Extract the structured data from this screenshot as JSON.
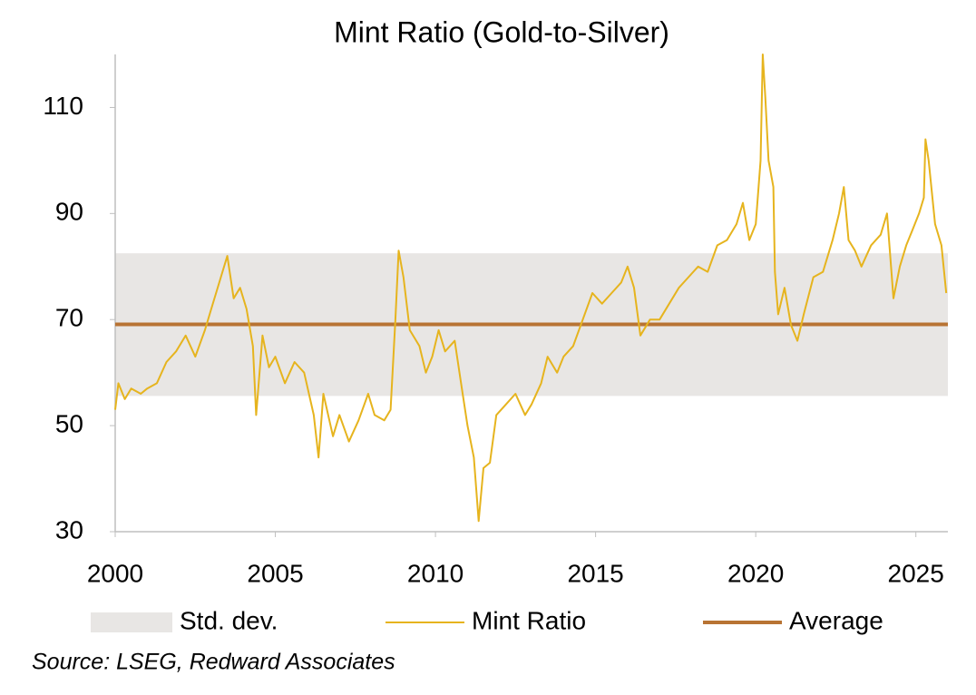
{
  "chart_data": {
    "type": "line",
    "title": "Mint Ratio (Gold-to-Silver)",
    "source": "Source: LSEG, Redward Associates",
    "xlim": [
      2000,
      2026
    ],
    "xticks": [
      2000,
      2005,
      2010,
      2015,
      2020,
      2025
    ],
    "ylim": [
      30,
      120
    ],
    "yticks": [
      30,
      50,
      70,
      90,
      110
    ],
    "band": {
      "name": "Std. dev.",
      "color": "#e8e6e4",
      "lower": 55.6,
      "upper": 82.5
    },
    "average": {
      "name": "Average",
      "color": "#b87333",
      "value": 69.1
    },
    "series": [
      {
        "name": "Mint Ratio",
        "color": "#e6b41e",
        "x": [
          2000.0,
          2000.1,
          2000.3,
          2000.5,
          2000.8,
          2001.0,
          2001.3,
          2001.6,
          2001.9,
          2002.2,
          2002.5,
          2002.8,
          2003.0,
          2003.3,
          2003.5,
          2003.7,
          2003.9,
          2004.1,
          2004.3,
          2004.4,
          2004.6,
          2004.8,
          2005.0,
          2005.3,
          2005.6,
          2005.9,
          2006.2,
          2006.35,
          2006.5,
          2006.8,
          2007.0,
          2007.3,
          2007.6,
          2007.9,
          2008.1,
          2008.4,
          2008.6,
          2008.75,
          2008.85,
          2009.0,
          2009.2,
          2009.5,
          2009.7,
          2009.9,
          2010.1,
          2010.3,
          2010.6,
          2010.8,
          2011.0,
          2011.2,
          2011.35,
          2011.5,
          2011.7,
          2011.9,
          2012.2,
          2012.5,
          2012.8,
          2013.0,
          2013.3,
          2013.5,
          2013.8,
          2014.0,
          2014.3,
          2014.6,
          2014.9,
          2015.2,
          2015.5,
          2015.8,
          2016.0,
          2016.2,
          2016.4,
          2016.7,
          2017.0,
          2017.3,
          2017.6,
          2017.9,
          2018.2,
          2018.5,
          2018.8,
          2019.1,
          2019.4,
          2019.6,
          2019.8,
          2020.0,
          2020.15,
          2020.22,
          2020.3,
          2020.4,
          2020.55,
          2020.6,
          2020.7,
          2020.9,
          2021.1,
          2021.3,
          2021.5,
          2021.8,
          2022.1,
          2022.4,
          2022.6,
          2022.75,
          2022.9,
          2023.1,
          2023.3,
          2023.6,
          2023.9,
          2024.1,
          2024.3,
          2024.5,
          2024.7,
          2024.9,
          2025.1,
          2025.25,
          2025.3,
          2025.4,
          2025.6,
          2025.8,
          2025.95
        ],
        "values": [
          53,
          58,
          55,
          57,
          56,
          57,
          58,
          62,
          64,
          67,
          63,
          68,
          72,
          78,
          82,
          74,
          76,
          72,
          65,
          52,
          67,
          61,
          63,
          58,
          62,
          60,
          52,
          44,
          56,
          48,
          52,
          47,
          51,
          56,
          52,
          51,
          53,
          70,
          83,
          78,
          68,
          65,
          60,
          63,
          68,
          64,
          66,
          58,
          50,
          44,
          32,
          42,
          43,
          52,
          54,
          56,
          52,
          54,
          58,
          63,
          60,
          63,
          65,
          70,
          75,
          73,
          75,
          77,
          80,
          76,
          67,
          70,
          70,
          73,
          76,
          78,
          80,
          79,
          84,
          85,
          88,
          92,
          85,
          88,
          100,
          120,
          112,
          100,
          95,
          79,
          71,
          76,
          69,
          66,
          71,
          78,
          79,
          85,
          90,
          95,
          85,
          83,
          80,
          84,
          86,
          90,
          74,
          80,
          84,
          87,
          90,
          93,
          104,
          100,
          88,
          84,
          75
        ]
      }
    ]
  }
}
